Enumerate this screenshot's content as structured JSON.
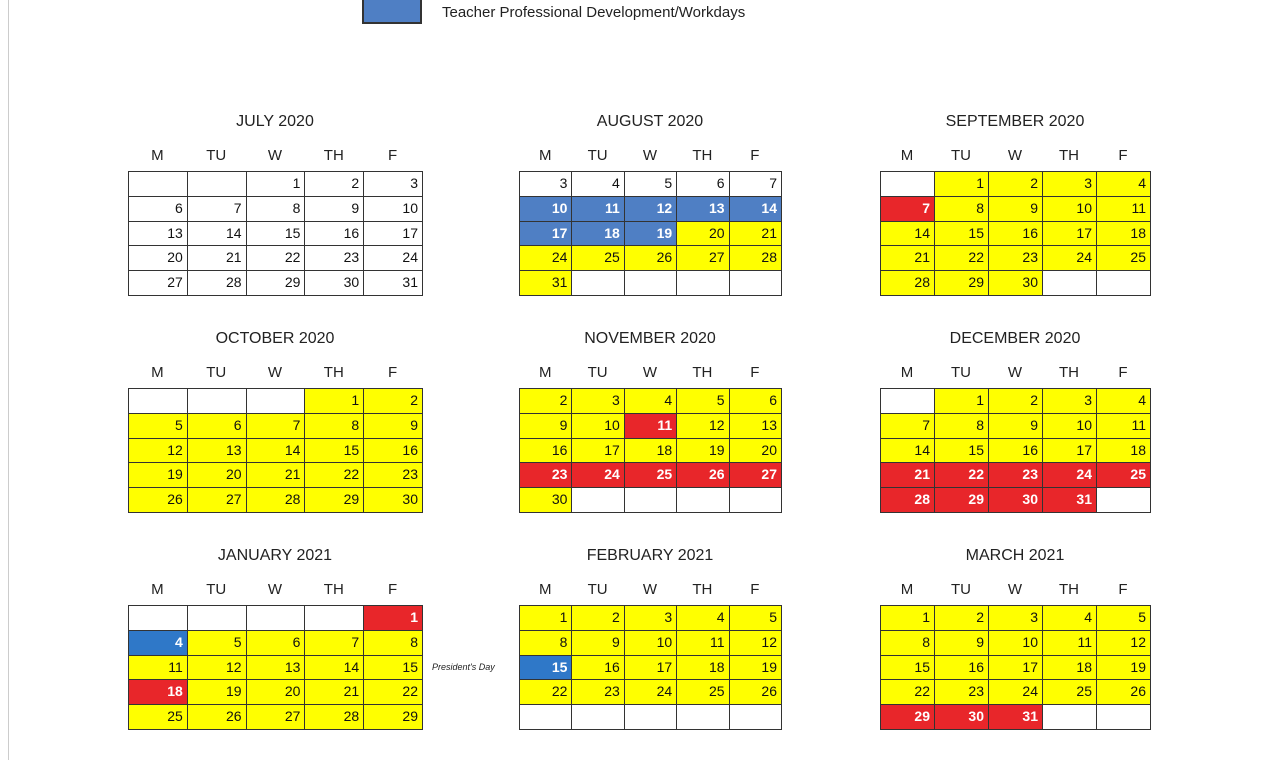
{
  "legend": {
    "label": "Teacher Professional Development/Workdays",
    "color": "#4f7fc4"
  },
  "day_headers": [
    "M",
    "TU",
    "W",
    "TH",
    "F"
  ],
  "months": [
    {
      "title": "JULY 2020",
      "weeks": [
        [
          [
            null,
            "#ffffff"
          ],
          [
            null,
            "#ffffff"
          ],
          [
            1,
            "#ffffff"
          ],
          [
            2,
            "#ffffff"
          ],
          [
            3,
            "#ffffff"
          ]
        ],
        [
          [
            6,
            "#ffffff"
          ],
          [
            7,
            "#ffffff"
          ],
          [
            8,
            "#ffffff"
          ],
          [
            9,
            "#ffffff"
          ],
          [
            10,
            "#ffffff"
          ]
        ],
        [
          [
            13,
            "#ffffff"
          ],
          [
            14,
            "#ffffff"
          ],
          [
            15,
            "#ffffff"
          ],
          [
            16,
            "#ffffff"
          ],
          [
            17,
            "#ffffff"
          ]
        ],
        [
          [
            20,
            "#ffffff"
          ],
          [
            21,
            "#ffffff"
          ],
          [
            22,
            "#ffffff"
          ],
          [
            23,
            "#ffffff"
          ],
          [
            24,
            "#ffffff"
          ]
        ],
        [
          [
            27,
            "#ffffff"
          ],
          [
            28,
            "#ffffff"
          ],
          [
            29,
            "#ffffff"
          ],
          [
            30,
            "#ffffff"
          ],
          [
            31,
            "#ffffff"
          ]
        ]
      ]
    },
    {
      "title": "AUGUST 2020",
      "weeks": [
        [
          [
            3,
            "#ffffff"
          ],
          [
            4,
            "#ffffff"
          ],
          [
            5,
            "#ffffff"
          ],
          [
            6,
            "#ffffff"
          ],
          [
            7,
            "#ffffff"
          ]
        ],
        [
          [
            10,
            "#4f7fc4"
          ],
          [
            11,
            "#4f7fc4"
          ],
          [
            12,
            "#4f7fc4"
          ],
          [
            13,
            "#4f7fc4"
          ],
          [
            14,
            "#4f7fc4"
          ]
        ],
        [
          [
            17,
            "#4f7fc4"
          ],
          [
            18,
            "#4f7fc4"
          ],
          [
            19,
            "#4f7fc4"
          ],
          [
            20,
            "#ffff00"
          ],
          [
            21,
            "#ffff00"
          ]
        ],
        [
          [
            24,
            "#ffff00"
          ],
          [
            25,
            "#ffff00"
          ],
          [
            26,
            "#ffff00"
          ],
          [
            27,
            "#ffff00"
          ],
          [
            28,
            "#ffff00"
          ]
        ],
        [
          [
            31,
            "#ffff00"
          ],
          [
            null,
            "#ffffff"
          ],
          [
            null,
            "#ffffff"
          ],
          [
            null,
            "#ffffff"
          ],
          [
            null,
            "#ffffff"
          ]
        ]
      ]
    },
    {
      "title": "SEPTEMBER 2020",
      "weeks": [
        [
          [
            null,
            "#ffffff"
          ],
          [
            1,
            "#ffff00"
          ],
          [
            2,
            "#ffff00"
          ],
          [
            3,
            "#ffff00"
          ],
          [
            4,
            "#ffff00"
          ]
        ],
        [
          [
            7,
            "#e8262a"
          ],
          [
            8,
            "#ffff00"
          ],
          [
            9,
            "#ffff00"
          ],
          [
            10,
            "#ffff00"
          ],
          [
            11,
            "#ffff00"
          ]
        ],
        [
          [
            14,
            "#ffff00"
          ],
          [
            15,
            "#ffff00"
          ],
          [
            16,
            "#ffff00"
          ],
          [
            17,
            "#ffff00"
          ],
          [
            18,
            "#ffff00"
          ]
        ],
        [
          [
            21,
            "#ffff00"
          ],
          [
            22,
            "#ffff00"
          ],
          [
            23,
            "#ffff00"
          ],
          [
            24,
            "#ffff00"
          ],
          [
            25,
            "#ffff00"
          ]
        ],
        [
          [
            28,
            "#ffff00"
          ],
          [
            29,
            "#ffff00"
          ],
          [
            30,
            "#ffff00"
          ],
          [
            null,
            "#ffffff"
          ],
          [
            null,
            "#ffffff"
          ]
        ]
      ]
    },
    {
      "title": "OCTOBER 2020",
      "weeks": [
        [
          [
            null,
            "#ffffff"
          ],
          [
            null,
            "#ffffff"
          ],
          [
            null,
            "#ffffff"
          ],
          [
            1,
            "#ffff00"
          ],
          [
            2,
            "#ffff00"
          ]
        ],
        [
          [
            5,
            "#ffff00"
          ],
          [
            6,
            "#ffff00"
          ],
          [
            7,
            "#ffff00"
          ],
          [
            8,
            "#ffff00"
          ],
          [
            9,
            "#ffff00"
          ]
        ],
        [
          [
            12,
            "#ffff00"
          ],
          [
            13,
            "#ffff00"
          ],
          [
            14,
            "#ffff00"
          ],
          [
            15,
            "#ffff00"
          ],
          [
            16,
            "#ffff00"
          ]
        ],
        [
          [
            19,
            "#ffff00"
          ],
          [
            20,
            "#ffff00"
          ],
          [
            21,
            "#ffff00"
          ],
          [
            22,
            "#ffff00"
          ],
          [
            23,
            "#ffff00"
          ]
        ],
        [
          [
            26,
            "#ffff00"
          ],
          [
            27,
            "#ffff00"
          ],
          [
            28,
            "#ffff00"
          ],
          [
            29,
            "#ffff00"
          ],
          [
            30,
            "#ffff00"
          ]
        ]
      ]
    },
    {
      "title": "NOVEMBER 2020",
      "weeks": [
        [
          [
            2,
            "#ffff00"
          ],
          [
            3,
            "#ffff00"
          ],
          [
            4,
            "#ffff00"
          ],
          [
            5,
            "#ffff00"
          ],
          [
            6,
            "#ffff00"
          ]
        ],
        [
          [
            9,
            "#ffff00"
          ],
          [
            10,
            "#ffff00"
          ],
          [
            11,
            "#e8262a"
          ],
          [
            12,
            "#ffff00"
          ],
          [
            13,
            "#ffff00"
          ]
        ],
        [
          [
            16,
            "#ffff00"
          ],
          [
            17,
            "#ffff00"
          ],
          [
            18,
            "#ffff00"
          ],
          [
            19,
            "#ffff00"
          ],
          [
            20,
            "#ffff00"
          ]
        ],
        [
          [
            23,
            "#e8262a"
          ],
          [
            24,
            "#e8262a"
          ],
          [
            25,
            "#e8262a"
          ],
          [
            26,
            "#e8262a"
          ],
          [
            27,
            "#e8262a"
          ]
        ],
        [
          [
            30,
            "#ffff00"
          ],
          [
            null,
            "#ffffff"
          ],
          [
            null,
            "#ffffff"
          ],
          [
            null,
            "#ffffff"
          ],
          [
            null,
            "#ffffff"
          ]
        ]
      ]
    },
    {
      "title": "DECEMBER 2020",
      "weeks": [
        [
          [
            null,
            "#ffffff"
          ],
          [
            1,
            "#ffff00"
          ],
          [
            2,
            "#ffff00"
          ],
          [
            3,
            "#ffff00"
          ],
          [
            4,
            "#ffff00"
          ]
        ],
        [
          [
            7,
            "#ffff00"
          ],
          [
            8,
            "#ffff00"
          ],
          [
            9,
            "#ffff00"
          ],
          [
            10,
            "#ffff00"
          ],
          [
            11,
            "#ffff00"
          ]
        ],
        [
          [
            14,
            "#ffff00"
          ],
          [
            15,
            "#ffff00"
          ],
          [
            16,
            "#ffff00"
          ],
          [
            17,
            "#ffff00"
          ],
          [
            18,
            "#ffff00"
          ]
        ],
        [
          [
            21,
            "#e8262a"
          ],
          [
            22,
            "#e8262a"
          ],
          [
            23,
            "#e8262a"
          ],
          [
            24,
            "#e8262a"
          ],
          [
            25,
            "#e8262a"
          ]
        ],
        [
          [
            28,
            "#e8262a"
          ],
          [
            29,
            "#e8262a"
          ],
          [
            30,
            "#e8262a"
          ],
          [
            31,
            "#e8262a"
          ],
          [
            null,
            "#ffffff"
          ]
        ]
      ]
    },
    {
      "title": "JANUARY 2021",
      "weeks": [
        [
          [
            null,
            "#ffffff"
          ],
          [
            null,
            "#ffffff"
          ],
          [
            null,
            "#ffffff"
          ],
          [
            null,
            "#ffffff"
          ],
          [
            1,
            "#e8262a"
          ]
        ],
        [
          [
            4,
            "#2f78c8"
          ],
          [
            5,
            "#ffff00"
          ],
          [
            6,
            "#ffff00"
          ],
          [
            7,
            "#ffff00"
          ],
          [
            8,
            "#ffff00"
          ]
        ],
        [
          [
            11,
            "#ffff00"
          ],
          [
            12,
            "#ffff00"
          ],
          [
            13,
            "#ffff00"
          ],
          [
            14,
            "#ffff00"
          ],
          [
            15,
            "#ffff00"
          ]
        ],
        [
          [
            18,
            "#e8262a"
          ],
          [
            19,
            "#ffff00"
          ],
          [
            20,
            "#ffff00"
          ],
          [
            21,
            "#ffff00"
          ],
          [
            22,
            "#ffff00"
          ]
        ],
        [
          [
            25,
            "#ffff00"
          ],
          [
            26,
            "#ffff00"
          ],
          [
            27,
            "#ffff00"
          ],
          [
            28,
            "#ffff00"
          ],
          [
            29,
            "#ffff00"
          ]
        ]
      ]
    },
    {
      "title": "FEBRUARY 2021",
      "note": "President's Day",
      "weeks": [
        [
          [
            1,
            "#ffff00"
          ],
          [
            2,
            "#ffff00"
          ],
          [
            3,
            "#ffff00"
          ],
          [
            4,
            "#ffff00"
          ],
          [
            5,
            "#ffff00"
          ]
        ],
        [
          [
            8,
            "#ffff00"
          ],
          [
            9,
            "#ffff00"
          ],
          [
            10,
            "#ffff00"
          ],
          [
            11,
            "#ffff00"
          ],
          [
            12,
            "#ffff00"
          ]
        ],
        [
          [
            15,
            "#2f78c8"
          ],
          [
            16,
            "#ffff00"
          ],
          [
            17,
            "#ffff00"
          ],
          [
            18,
            "#ffff00"
          ],
          [
            19,
            "#ffff00"
          ]
        ],
        [
          [
            22,
            "#ffff00"
          ],
          [
            23,
            "#ffff00"
          ],
          [
            24,
            "#ffff00"
          ],
          [
            25,
            "#ffff00"
          ],
          [
            26,
            "#ffff00"
          ]
        ],
        [
          [
            null,
            "#ffffff"
          ],
          [
            null,
            "#ffffff"
          ],
          [
            null,
            "#ffffff"
          ],
          [
            null,
            "#ffffff"
          ],
          [
            null,
            "#ffffff"
          ]
        ]
      ]
    },
    {
      "title": "MARCH 2021",
      "weeks": [
        [
          [
            1,
            "#ffff00"
          ],
          [
            2,
            "#ffff00"
          ],
          [
            3,
            "#ffff00"
          ],
          [
            4,
            "#ffff00"
          ],
          [
            5,
            "#ffff00"
          ]
        ],
        [
          [
            8,
            "#ffff00"
          ],
          [
            9,
            "#ffff00"
          ],
          [
            10,
            "#ffff00"
          ],
          [
            11,
            "#ffff00"
          ],
          [
            12,
            "#ffff00"
          ]
        ],
        [
          [
            15,
            "#ffff00"
          ],
          [
            16,
            "#ffff00"
          ],
          [
            17,
            "#ffff00"
          ],
          [
            18,
            "#ffff00"
          ],
          [
            19,
            "#ffff00"
          ]
        ],
        [
          [
            22,
            "#ffff00"
          ],
          [
            23,
            "#ffff00"
          ],
          [
            24,
            "#ffff00"
          ],
          [
            25,
            "#ffff00"
          ],
          [
            26,
            "#ffff00"
          ]
        ],
        [
          [
            29,
            "#e8262a"
          ],
          [
            30,
            "#e8262a"
          ],
          [
            31,
            "#e8262a"
          ],
          [
            null,
            "#ffffff"
          ],
          [
            null,
            "#ffffff"
          ]
        ]
      ]
    }
  ]
}
